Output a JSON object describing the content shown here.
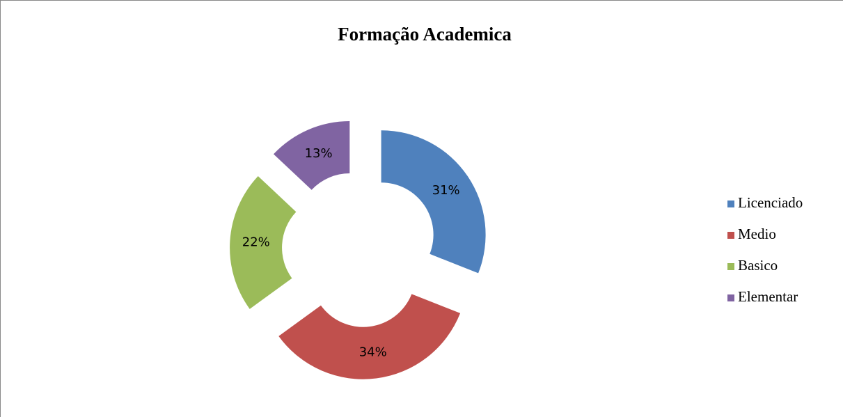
{
  "chart_data": {
    "type": "doughnut",
    "title": "Formação  Academica",
    "categories": [
      "Licenciado",
      "Medio",
      "Basico",
      "Elementar"
    ],
    "values": [
      31,
      34,
      22,
      13
    ],
    "value_labels": [
      "31%",
      "34%",
      "22%",
      "13%"
    ],
    "colors": [
      "#4f81bd",
      "#c0504d",
      "#9bbb59",
      "#8064a2"
    ],
    "legend": "right"
  }
}
